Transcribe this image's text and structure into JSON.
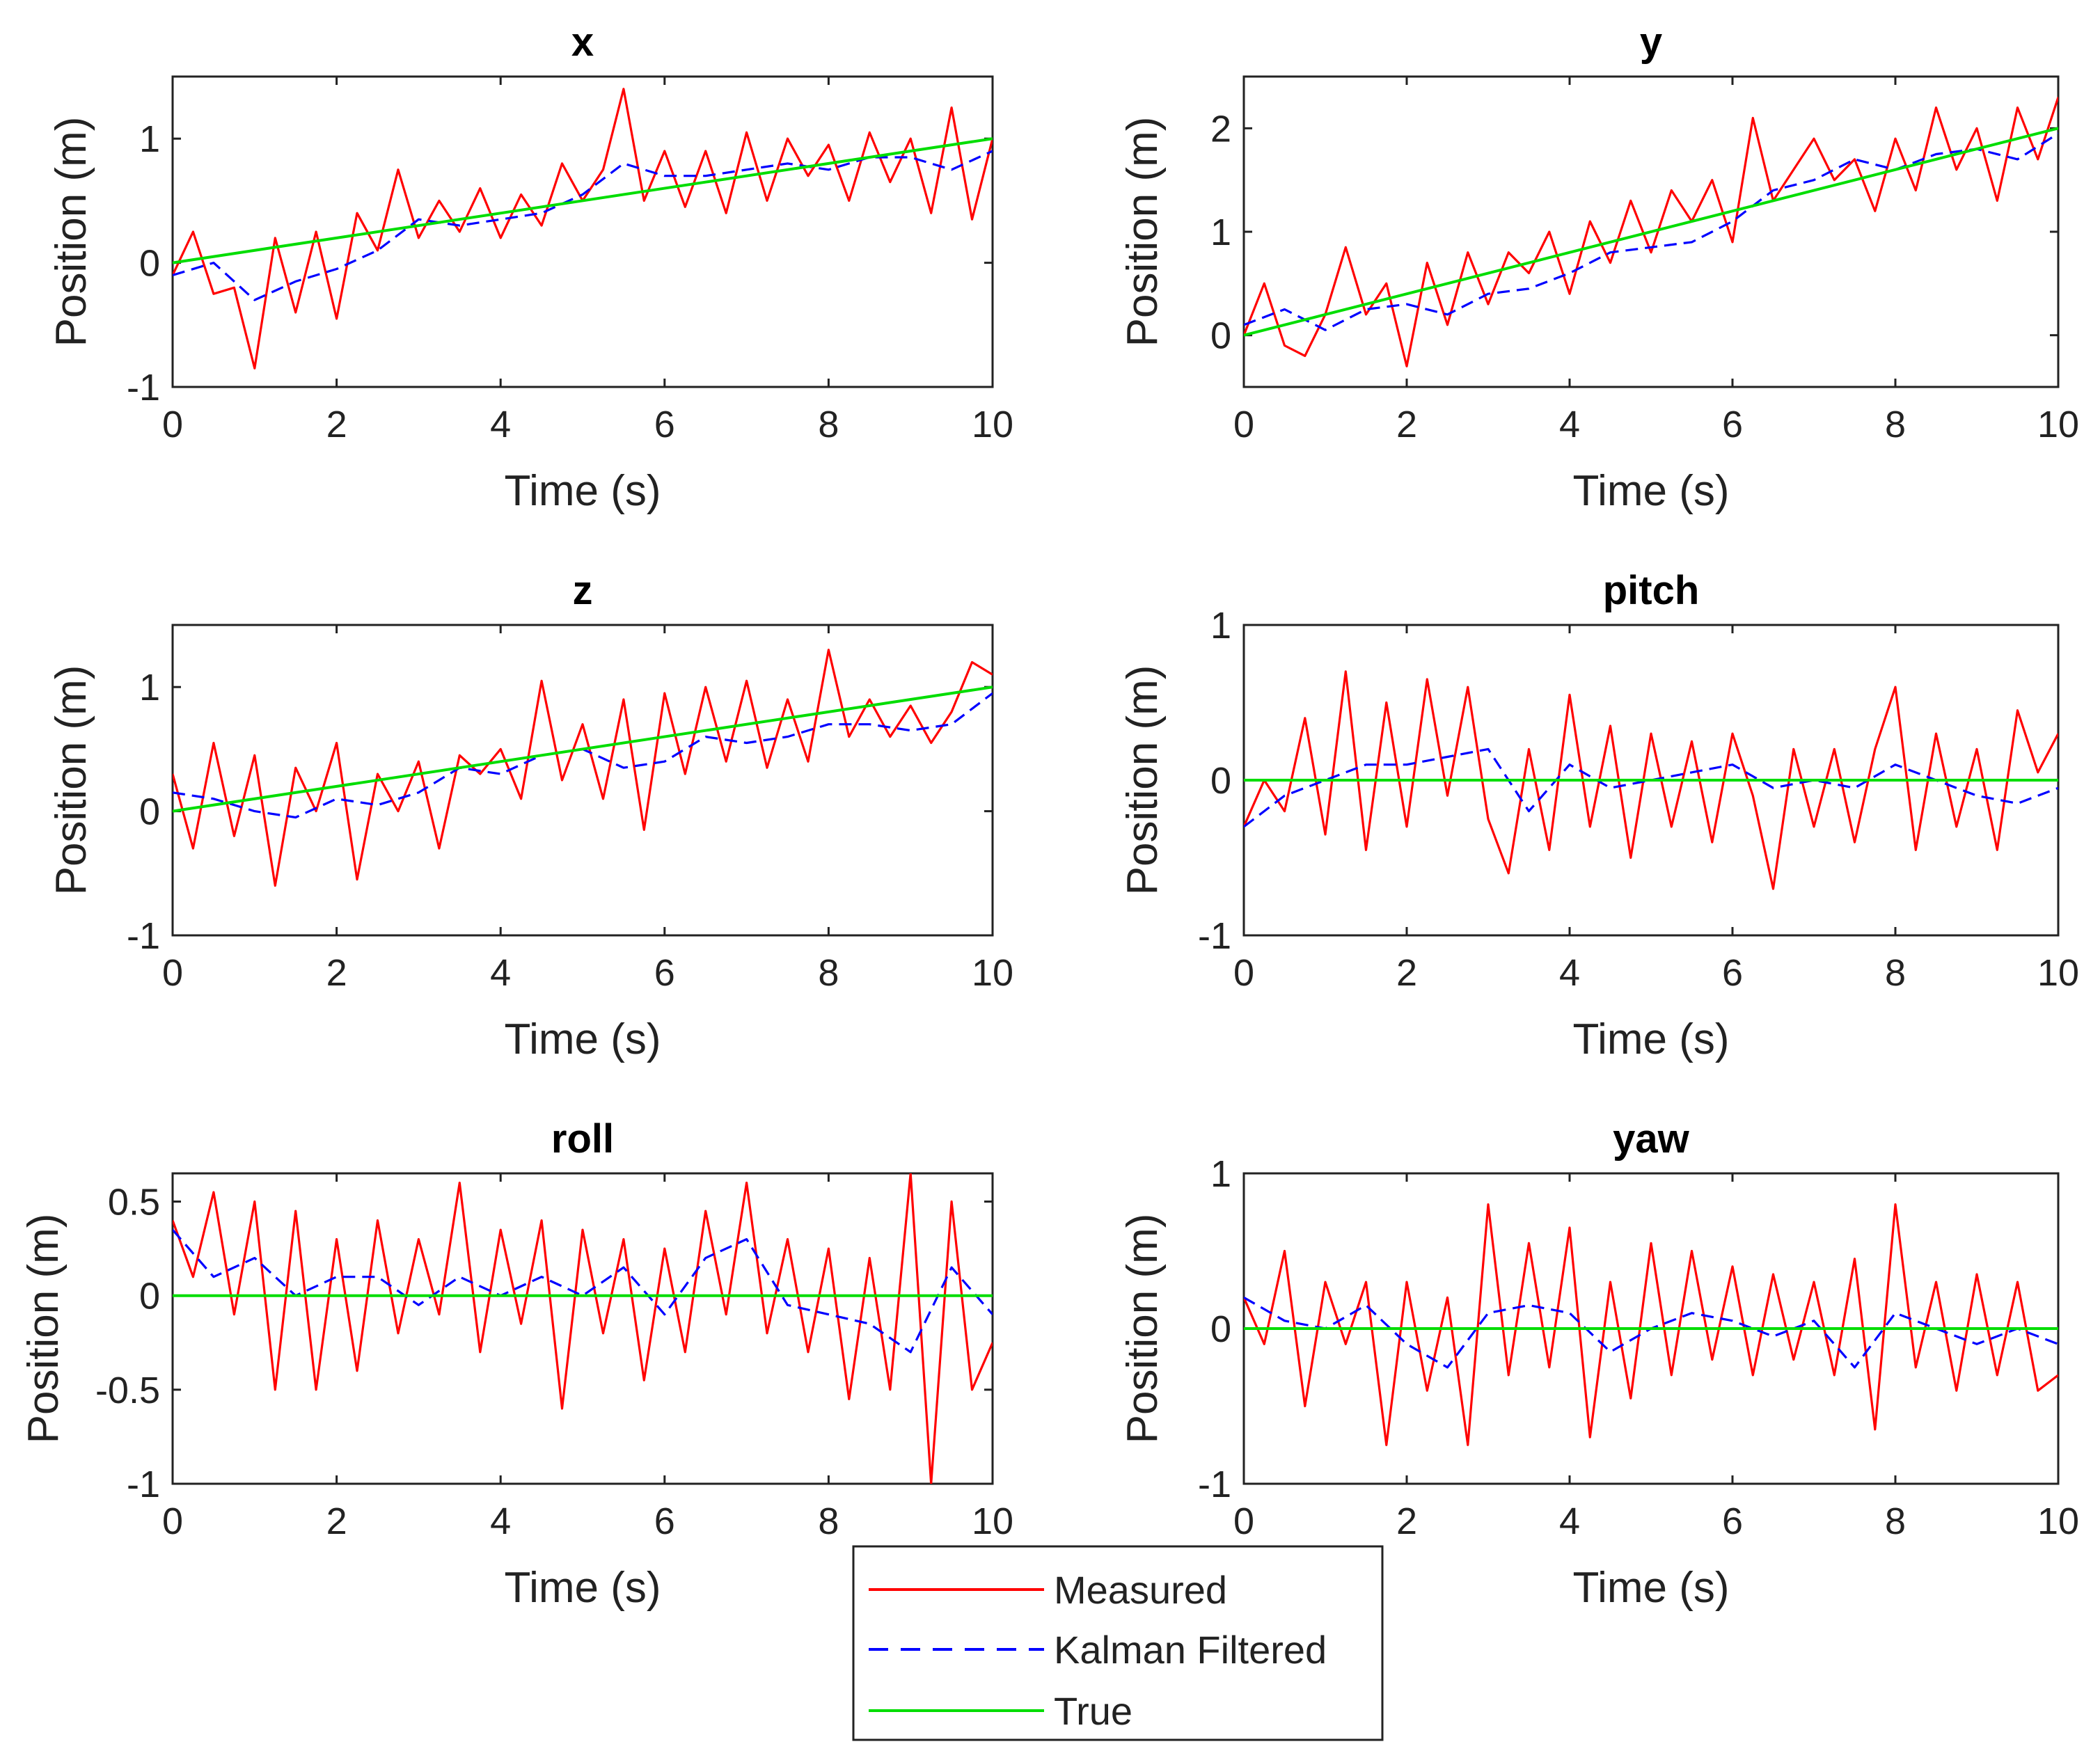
{
  "chart_data": [
    {
      "type": "line",
      "title": "x",
      "xlabel": "Time (s)",
      "ylabel": "Position (m)",
      "xlim": [
        0,
        10
      ],
      "ylim": [
        -1,
        1.5
      ],
      "xticks": [
        "0",
        "2",
        "4",
        "6",
        "8",
        "10"
      ],
      "yticks": [
        "-1",
        "0",
        "1"
      ],
      "series": [
        {
          "name": "Measured",
          "x": [
            0,
            0.25,
            0.5,
            0.75,
            1,
            1.25,
            1.5,
            1.75,
            2,
            2.25,
            2.5,
            2.75,
            3,
            3.25,
            3.5,
            3.75,
            4,
            4.25,
            4.5,
            4.75,
            5,
            5.25,
            5.5,
            5.75,
            6,
            6.25,
            6.5,
            6.75,
            7,
            7.25,
            7.5,
            7.75,
            8,
            8.25,
            8.5,
            8.75,
            9,
            9.25,
            9.5,
            9.75,
            10
          ],
          "y": [
            -0.1,
            0.25,
            -0.25,
            -0.2,
            -0.85,
            0.2,
            -0.4,
            0.25,
            -0.45,
            0.4,
            0.1,
            0.75,
            0.2,
            0.5,
            0.25,
            0.6,
            0.2,
            0.55,
            0.3,
            0.8,
            0.5,
            0.75,
            1.4,
            0.5,
            0.9,
            0.45,
            0.9,
            0.4,
            1.05,
            0.5,
            1.0,
            0.7,
            0.95,
            0.5,
            1.05,
            0.65,
            1.0,
            0.4,
            1.25,
            0.35,
            1.0
          ]
        },
        {
          "name": "Kalman Filtered",
          "x": [
            0,
            0.5,
            1,
            1.5,
            2,
            2.5,
            3,
            3.5,
            4,
            4.5,
            5,
            5.5,
            6,
            6.5,
            7,
            7.5,
            8,
            8.5,
            9,
            9.5,
            10
          ],
          "y": [
            -0.1,
            0.0,
            -0.3,
            -0.15,
            -0.05,
            0.1,
            0.35,
            0.3,
            0.35,
            0.4,
            0.55,
            0.8,
            0.7,
            0.7,
            0.75,
            0.8,
            0.75,
            0.85,
            0.85,
            0.75,
            0.9
          ]
        },
        {
          "name": "True",
          "x": [
            0,
            10
          ],
          "y": [
            0,
            1
          ]
        }
      ]
    },
    {
      "type": "line",
      "title": "y",
      "xlabel": "Time (s)",
      "ylabel": "Position (m)",
      "xlim": [
        0,
        10
      ],
      "ylim": [
        -0.5,
        2.5
      ],
      "xticks": [
        "0",
        "2",
        "4",
        "6",
        "8",
        "10"
      ],
      "yticks": [
        "0",
        "1",
        "2"
      ],
      "series": [
        {
          "name": "Measured",
          "x": [
            0,
            0.25,
            0.5,
            0.75,
            1,
            1.25,
            1.5,
            1.75,
            2,
            2.25,
            2.5,
            2.75,
            3,
            3.25,
            3.5,
            3.75,
            4,
            4.25,
            4.5,
            4.75,
            5,
            5.25,
            5.5,
            5.75,
            6,
            6.25,
            6.5,
            6.75,
            7,
            7.25,
            7.5,
            7.75,
            8,
            8.25,
            8.5,
            8.75,
            9,
            9.25,
            9.5,
            9.75,
            10
          ],
          "y": [
            0.0,
            0.5,
            -0.1,
            -0.2,
            0.2,
            0.85,
            0.2,
            0.5,
            -0.3,
            0.7,
            0.1,
            0.8,
            0.3,
            0.8,
            0.6,
            1.0,
            0.4,
            1.1,
            0.7,
            1.3,
            0.8,
            1.4,
            1.1,
            1.5,
            0.9,
            2.1,
            1.3,
            1.6,
            1.9,
            1.5,
            1.7,
            1.2,
            1.9,
            1.4,
            2.2,
            1.6,
            2.0,
            1.3,
            2.2,
            1.7,
            2.3
          ]
        },
        {
          "name": "Kalman Filtered",
          "x": [
            0,
            0.5,
            1,
            1.5,
            2,
            2.5,
            3,
            3.5,
            4,
            4.5,
            5,
            5.5,
            6,
            6.5,
            7,
            7.5,
            8,
            8.5,
            9,
            9.5,
            10
          ],
          "y": [
            0.1,
            0.25,
            0.05,
            0.25,
            0.3,
            0.2,
            0.4,
            0.45,
            0.6,
            0.8,
            0.85,
            0.9,
            1.1,
            1.4,
            1.5,
            1.7,
            1.6,
            1.75,
            1.8,
            1.7,
            1.95
          ]
        },
        {
          "name": "True",
          "x": [
            0,
            10
          ],
          "y": [
            0,
            2
          ]
        }
      ]
    },
    {
      "type": "line",
      "title": "z",
      "xlabel": "Time (s)",
      "ylabel": "Position (m)",
      "xlim": [
        0,
        10
      ],
      "ylim": [
        -1,
        1.5
      ],
      "xticks": [
        "0",
        "2",
        "4",
        "6",
        "8",
        "10"
      ],
      "yticks": [
        "-1",
        "0",
        "1"
      ],
      "series": [
        {
          "name": "Measured",
          "x": [
            0,
            0.25,
            0.5,
            0.75,
            1,
            1.25,
            1.5,
            1.75,
            2,
            2.25,
            2.5,
            2.75,
            3,
            3.25,
            3.5,
            3.75,
            4,
            4.25,
            4.5,
            4.75,
            5,
            5.25,
            5.5,
            5.75,
            6,
            6.25,
            6.5,
            6.75,
            7,
            7.25,
            7.5,
            7.75,
            8,
            8.25,
            8.5,
            8.75,
            9,
            9.25,
            9.5,
            9.75,
            10
          ],
          "y": [
            0.3,
            -0.3,
            0.55,
            -0.2,
            0.45,
            -0.6,
            0.35,
            0.0,
            0.55,
            -0.55,
            0.3,
            0.0,
            0.4,
            -0.3,
            0.45,
            0.3,
            0.5,
            0.1,
            1.05,
            0.25,
            0.7,
            0.1,
            0.9,
            -0.15,
            0.95,
            0.3,
            1.0,
            0.4,
            1.05,
            0.35,
            0.9,
            0.4,
            1.3,
            0.6,
            0.9,
            0.6,
            0.85,
            0.55,
            0.8,
            1.2,
            1.1
          ]
        },
        {
          "name": "Kalman Filtered",
          "x": [
            0,
            0.5,
            1,
            1.5,
            2,
            2.5,
            3,
            3.5,
            4,
            4.5,
            5,
            5.5,
            6,
            6.5,
            7,
            7.5,
            8,
            8.5,
            9,
            9.5,
            10
          ],
          "y": [
            0.15,
            0.1,
            0.0,
            -0.05,
            0.1,
            0.05,
            0.15,
            0.35,
            0.3,
            0.45,
            0.5,
            0.35,
            0.4,
            0.6,
            0.55,
            0.6,
            0.7,
            0.7,
            0.65,
            0.7,
            0.95
          ]
        },
        {
          "name": "True",
          "x": [
            0,
            10
          ],
          "y": [
            0,
            1
          ]
        }
      ]
    },
    {
      "type": "line",
      "title": "pitch",
      "xlabel": "Time (s)",
      "ylabel": "Position (m)",
      "xlim": [
        0,
        10
      ],
      "ylim": [
        -1,
        1
      ],
      "xticks": [
        "0",
        "2",
        "4",
        "6",
        "8",
        "10"
      ],
      "yticks": [
        "-1",
        "0",
        "1"
      ],
      "series": [
        {
          "name": "Measured",
          "x": [
            0,
            0.25,
            0.5,
            0.75,
            1,
            1.25,
            1.5,
            1.75,
            2,
            2.25,
            2.5,
            2.75,
            3,
            3.25,
            3.5,
            3.75,
            4,
            4.25,
            4.5,
            4.75,
            5,
            5.25,
            5.5,
            5.75,
            6,
            6.25,
            6.5,
            6.75,
            7,
            7.25,
            7.5,
            7.75,
            8,
            8.25,
            8.5,
            8.75,
            9,
            9.25,
            9.5,
            9.75,
            10
          ],
          "y": [
            -0.3,
            0.0,
            -0.2,
            0.4,
            -0.35,
            0.7,
            -0.45,
            0.5,
            -0.3,
            0.65,
            -0.1,
            0.6,
            -0.25,
            -0.6,
            0.2,
            -0.45,
            0.55,
            -0.3,
            0.35,
            -0.5,
            0.3,
            -0.3,
            0.25,
            -0.4,
            0.3,
            -0.1,
            -0.7,
            0.2,
            -0.3,
            0.2,
            -0.4,
            0.2,
            0.6,
            -0.45,
            0.3,
            -0.3,
            0.2,
            -0.45,
            0.45,
            0.05,
            0.3
          ]
        },
        {
          "name": "Kalman Filtered",
          "x": [
            0,
            0.5,
            1,
            1.5,
            2,
            2.5,
            3,
            3.5,
            4,
            4.5,
            5,
            5.5,
            6,
            6.5,
            7,
            7.5,
            8,
            8.5,
            9,
            9.5,
            10
          ],
          "y": [
            -0.3,
            -0.1,
            0.0,
            0.1,
            0.1,
            0.15,
            0.2,
            -0.2,
            0.1,
            -0.05,
            0.0,
            0.05,
            0.1,
            -0.05,
            0.0,
            -0.05,
            0.1,
            0.0,
            -0.1,
            -0.15,
            -0.05
          ]
        },
        {
          "name": "True",
          "x": [
            0,
            10
          ],
          "y": [
            0,
            0
          ]
        }
      ]
    },
    {
      "type": "line",
      "title": "roll",
      "xlabel": "Time (s)",
      "ylabel": "Position (m)",
      "xlim": [
        0,
        10
      ],
      "ylim": [
        -1,
        0.65
      ],
      "xticks": [
        "0",
        "2",
        "4",
        "6",
        "8",
        "10"
      ],
      "yticks": [
        "-1",
        "-0.5",
        "0",
        "0.5"
      ],
      "series": [
        {
          "name": "Measured",
          "x": [
            0,
            0.25,
            0.5,
            0.75,
            1,
            1.25,
            1.5,
            1.75,
            2,
            2.25,
            2.5,
            2.75,
            3,
            3.25,
            3.5,
            3.75,
            4,
            4.25,
            4.5,
            4.75,
            5,
            5.25,
            5.5,
            5.75,
            6,
            6.25,
            6.5,
            6.75,
            7,
            7.25,
            7.5,
            7.75,
            8,
            8.25,
            8.5,
            8.75,
            9,
            9.25,
            9.5,
            9.75,
            10
          ],
          "y": [
            0.4,
            0.1,
            0.55,
            -0.1,
            0.5,
            -0.5,
            0.45,
            -0.5,
            0.3,
            -0.4,
            0.4,
            -0.2,
            0.3,
            -0.1,
            0.6,
            -0.3,
            0.35,
            -0.15,
            0.4,
            -0.6,
            0.35,
            -0.2,
            0.3,
            -0.45,
            0.25,
            -0.3,
            0.45,
            -0.1,
            0.6,
            -0.2,
            0.3,
            -0.3,
            0.25,
            -0.55,
            0.2,
            -0.5,
            0.65,
            -1.0,
            0.5,
            -0.5,
            -0.25
          ]
        },
        {
          "name": "Kalman Filtered",
          "x": [
            0,
            0.5,
            1,
            1.5,
            2,
            2.5,
            3,
            3.5,
            4,
            4.5,
            5,
            5.5,
            6,
            6.5,
            7,
            7.5,
            8,
            8.5,
            9,
            9.5,
            10
          ],
          "y": [
            0.35,
            0.1,
            0.2,
            0.0,
            0.1,
            0.1,
            -0.05,
            0.1,
            0.0,
            0.1,
            0.0,
            0.15,
            -0.1,
            0.2,
            0.3,
            -0.05,
            -0.1,
            -0.15,
            -0.3,
            0.15,
            -0.1
          ]
        },
        {
          "name": "True",
          "x": [
            0,
            10
          ],
          "y": [
            0,
            0
          ]
        }
      ]
    },
    {
      "type": "line",
      "title": "yaw",
      "xlabel": "Time (s)",
      "ylabel": "Position (m)",
      "xlim": [
        0,
        10
      ],
      "ylim": [
        -1,
        1
      ],
      "xticks": [
        "0",
        "2",
        "4",
        "6",
        "8",
        "10"
      ],
      "yticks": [
        "-1",
        "0",
        "1"
      ],
      "series": [
        {
          "name": "Measured",
          "x": [
            0,
            0.25,
            0.5,
            0.75,
            1,
            1.25,
            1.5,
            1.75,
            2,
            2.25,
            2.5,
            2.75,
            3,
            3.25,
            3.5,
            3.75,
            4,
            4.25,
            4.5,
            4.75,
            5,
            5.25,
            5.5,
            5.75,
            6,
            6.25,
            6.5,
            6.75,
            7,
            7.25,
            7.5,
            7.75,
            8,
            8.25,
            8.5,
            8.75,
            9,
            9.25,
            9.5,
            9.75,
            10
          ],
          "y": [
            0.2,
            -0.1,
            0.5,
            -0.5,
            0.3,
            -0.1,
            0.3,
            -0.75,
            0.3,
            -0.4,
            0.2,
            -0.75,
            0.8,
            -0.3,
            0.55,
            -0.25,
            0.65,
            -0.7,
            0.3,
            -0.45,
            0.55,
            -0.3,
            0.5,
            -0.2,
            0.4,
            -0.3,
            0.35,
            -0.2,
            0.3,
            -0.3,
            0.45,
            -0.65,
            0.8,
            -0.25,
            0.3,
            -0.4,
            0.35,
            -0.3,
            0.3,
            -0.4,
            -0.3
          ]
        },
        {
          "name": "Kalman Filtered",
          "x": [
            0,
            0.5,
            1,
            1.5,
            2,
            2.5,
            3,
            3.5,
            4,
            4.5,
            5,
            5.5,
            6,
            6.5,
            7,
            7.5,
            8,
            8.5,
            9,
            9.5,
            10
          ],
          "y": [
            0.2,
            0.05,
            0.0,
            0.15,
            -0.1,
            -0.25,
            0.1,
            0.15,
            0.1,
            -0.15,
            0.0,
            0.1,
            0.05,
            -0.05,
            0.05,
            -0.25,
            0.1,
            0.0,
            -0.1,
            0.0,
            -0.1
          ]
        },
        {
          "name": "True",
          "x": [
            0,
            10
          ],
          "y": [
            0,
            0
          ]
        }
      ]
    }
  ],
  "legend": {
    "location": "bottom-center",
    "entries": [
      {
        "label": "Measured",
        "color": "#ff0000",
        "style": "solid"
      },
      {
        "label": "Kalman Filtered",
        "color": "#0000ff",
        "style": "dashed"
      },
      {
        "label": "True",
        "color": "#00dd00",
        "style": "solid"
      }
    ]
  },
  "colors": {
    "measured": "#ff0000",
    "kalman": "#0000ff",
    "true": "#00dd00",
    "axes": "#222222"
  }
}
